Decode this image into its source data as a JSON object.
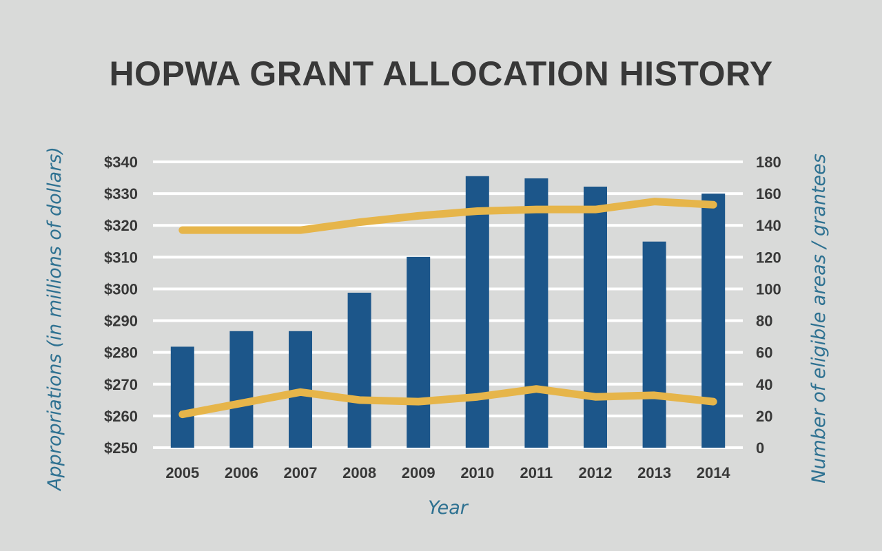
{
  "chart_data": {
    "type": "bar",
    "title": "HOPWA GRANT ALLOCATION HISTORY",
    "xlabel": "Year",
    "ylabel": "Appropriations (in millions of dollars)",
    "y2label": "Number of eligible areas / grantees",
    "categories": [
      "2005",
      "2006",
      "2007",
      "2008",
      "2009",
      "2010",
      "2011",
      "2012",
      "2013",
      "2014"
    ],
    "ylim": [
      250,
      340
    ],
    "y_ticks": [
      250,
      260,
      270,
      280,
      290,
      300,
      310,
      320,
      330,
      340
    ],
    "y_tick_prefix": "$",
    "y2lim": [
      0,
      180
    ],
    "y2_ticks": [
      0,
      20,
      40,
      60,
      80,
      100,
      120,
      140,
      160,
      180
    ],
    "grid": true,
    "series": [
      {
        "kind": "bar",
        "axis": "left",
        "color": "#1c568a",
        "values": [
          281.8,
          286.7,
          286.7,
          298.8,
          310.1,
          335.5,
          334.8,
          332.2,
          314.9,
          330.0
        ]
      },
      {
        "kind": "line",
        "axis": "right",
        "color": "#e6b54a",
        "values": [
          137,
          137,
          137,
          142,
          146,
          149,
          150,
          150,
          155,
          153
        ]
      },
      {
        "kind": "line",
        "axis": "right",
        "color": "#e6b54a",
        "values": [
          21,
          28,
          35,
          30,
          29,
          32,
          37,
          32,
          33,
          29
        ]
      }
    ]
  }
}
